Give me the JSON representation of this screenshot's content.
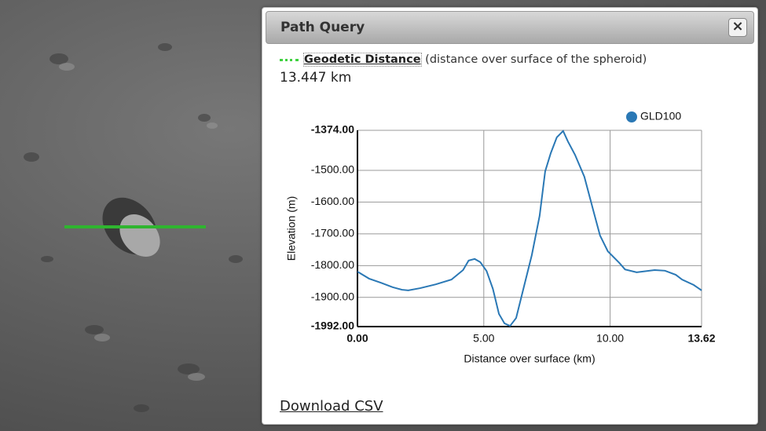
{
  "panel": {
    "title": "Path Query",
    "close": "×",
    "distance_label": "Geodetic Distance",
    "distance_note": "(distance over surface of the spheroid)",
    "distance_value": "13.447 km",
    "download": "Download CSV"
  },
  "chart_data": {
    "type": "line",
    "x": [
      0,
      0.46,
      0.93,
      1.39,
      1.76,
      2.01,
      2.48,
      3.1,
      3.72,
      4.18,
      4.4,
      4.64,
      4.86,
      5.11,
      5.36,
      5.6,
      5.82,
      6.04,
      6.28,
      6.59,
      6.9,
      7.21,
      7.43,
      7.65,
      7.89,
      8.14,
      8.33,
      8.61,
      8.98,
      9.35,
      9.6,
      9.91,
      10.37,
      10.59,
      11.05,
      11.76,
      12.17,
      12.6,
      12.85,
      13.31,
      13.62
    ],
    "series": [
      {
        "name": "GLD100",
        "color": "#2a78b5",
        "values": [
          -1819,
          -1841,
          -1854,
          -1868,
          -1876,
          -1878,
          -1871,
          -1859,
          -1844,
          -1814,
          -1784,
          -1779,
          -1789,
          -1817,
          -1873,
          -1952,
          -1982,
          -1990,
          -1965,
          -1866,
          -1767,
          -1643,
          -1503,
          -1446,
          -1396,
          -1376,
          -1409,
          -1451,
          -1520,
          -1631,
          -1705,
          -1755,
          -1792,
          -1812,
          -1821,
          -1814,
          -1816,
          -1829,
          -1844,
          -1861,
          -1878
        ]
      }
    ],
    "xlabel": "Distance over surface (km)",
    "ylabel": "Elevation (m)",
    "xlim": [
      0,
      13.62
    ],
    "ylim": [
      -1992,
      -1374
    ],
    "xticks": [
      {
        "value": 0,
        "label": "0.00"
      },
      {
        "value": 5,
        "label": "5.00"
      },
      {
        "value": 10,
        "label": "10.00"
      },
      {
        "value": 13.62,
        "label": "13.62"
      }
    ],
    "yticks": [
      {
        "value": -1992,
        "label": "-1992.00"
      },
      {
        "value": -1900,
        "label": "-1900.00"
      },
      {
        "value": -1800,
        "label": "-1800.00"
      },
      {
        "value": -1700,
        "label": "-1700.00"
      },
      {
        "value": -1600,
        "label": "-1600.00"
      },
      {
        "value": -1500,
        "label": "-1500.00"
      },
      {
        "value": -1374,
        "label": "-1374.00"
      }
    ],
    "grid": true
  }
}
